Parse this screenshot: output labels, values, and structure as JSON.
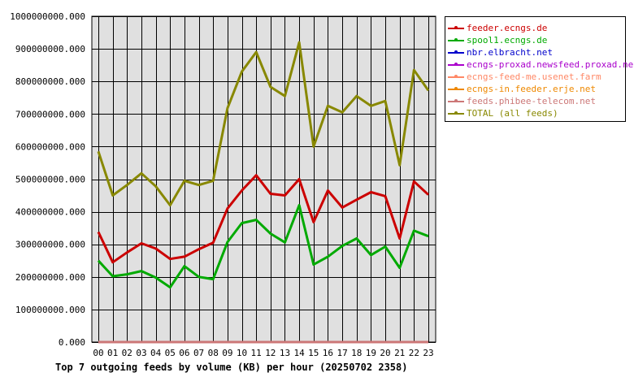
{
  "chart_data": {
    "type": "line",
    "title": "Top 7 outgoing feeds by volume (KB) per hour (20250702 2358)",
    "xlabel": "",
    "ylabel": "",
    "categories": [
      "00",
      "01",
      "02",
      "03",
      "04",
      "05",
      "06",
      "07",
      "08",
      "09",
      "10",
      "11",
      "12",
      "13",
      "14",
      "15",
      "16",
      "17",
      "18",
      "19",
      "20",
      "21",
      "22",
      "23"
    ],
    "ylim": [
      0,
      1000000000
    ],
    "yticks": [
      "0.000",
      "100000000.000",
      "200000000.000",
      "300000000.000",
      "400000000.000",
      "500000000.000",
      "600000000.000",
      "700000000.000",
      "800000000.000",
      "900000000.000",
      "1000000000.000"
    ],
    "grid": true,
    "legend_position": "right",
    "series": [
      {
        "name": "feeder.ecngs.de",
        "color": "#cc0000",
        "values": [
          338000000,
          245000000,
          275000000,
          303000000,
          287000000,
          255000000,
          262000000,
          285000000,
          305000000,
          410000000,
          465000000,
          512000000,
          455000000,
          450000000,
          500000000,
          368000000,
          465000000,
          413000000,
          437000000,
          460000000,
          448000000,
          318000000,
          493000000,
          452000000
        ]
      },
      {
        "name": "spool1.ecngs.de",
        "color": "#00aa00",
        "values": [
          250000000,
          202000000,
          208000000,
          218000000,
          198000000,
          168000000,
          233000000,
          200000000,
          193000000,
          307000000,
          365000000,
          375000000,
          333000000,
          306000000,
          420000000,
          238000000,
          262000000,
          295000000,
          318000000,
          267000000,
          293000000,
          228000000,
          342000000,
          325000000
        ]
      },
      {
        "name": "nbr.elbracht.net",
        "color": "#0000cc",
        "values": [
          0,
          0,
          0,
          0,
          0,
          0,
          0,
          0,
          0,
          0,
          0,
          0,
          0,
          0,
          0,
          0,
          0,
          0,
          0,
          0,
          0,
          0,
          0,
          0
        ]
      },
      {
        "name": "ecngs-proxad.newsfeed.proxad.net",
        "color": "#aa00cc",
        "values": [
          0,
          0,
          0,
          0,
          0,
          0,
          0,
          0,
          0,
          0,
          0,
          0,
          0,
          0,
          0,
          0,
          0,
          0,
          0,
          0,
          0,
          0,
          0,
          0
        ]
      },
      {
        "name": "ecngs-feed-me.usenet.farm",
        "color": "#ff8866",
        "values": [
          0,
          0,
          0,
          0,
          0,
          0,
          0,
          0,
          0,
          0,
          0,
          0,
          0,
          0,
          0,
          0,
          0,
          0,
          0,
          0,
          0,
          0,
          0,
          0
        ]
      },
      {
        "name": "ecngs-in.feeder.erje.net",
        "color": "#ee8800",
        "values": [
          0,
          0,
          0,
          0,
          0,
          0,
          0,
          0,
          0,
          0,
          0,
          0,
          0,
          0,
          0,
          0,
          0,
          0,
          0,
          0,
          0,
          0,
          0,
          0
        ]
      },
      {
        "name": "feeds.phibee-telecom.net",
        "color": "#cc7777",
        "values": [
          0,
          0,
          0,
          0,
          0,
          0,
          0,
          0,
          0,
          0,
          0,
          0,
          0,
          0,
          0,
          0,
          0,
          0,
          0,
          0,
          0,
          0,
          0,
          0
        ]
      },
      {
        "name": "TOTAL (all feeds)",
        "color": "#888800",
        "values": [
          585000000,
          450000000,
          482000000,
          518000000,
          478000000,
          420000000,
          495000000,
          482000000,
          495000000,
          718000000,
          830000000,
          890000000,
          783000000,
          755000000,
          920000000,
          600000000,
          725000000,
          705000000,
          755000000,
          725000000,
          740000000,
          543000000,
          835000000,
          772000000
        ]
      }
    ]
  }
}
